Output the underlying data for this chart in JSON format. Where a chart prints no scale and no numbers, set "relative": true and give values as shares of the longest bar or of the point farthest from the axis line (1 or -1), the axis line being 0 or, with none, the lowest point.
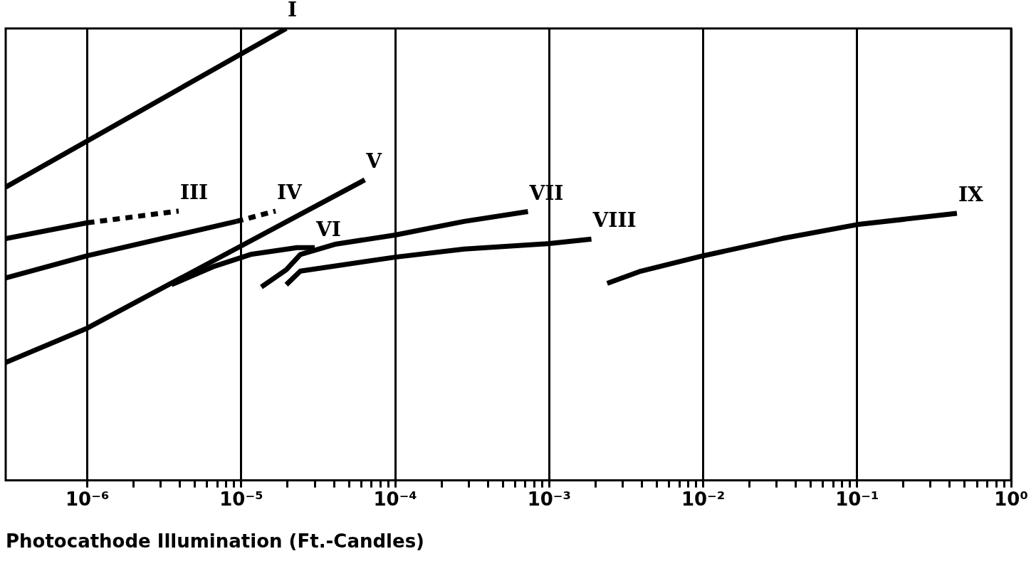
{
  "chart_data": {
    "type": "line",
    "xlabel": "Photocathode Illumination (Ft.-Candles)",
    "relative": true,
    "log": "x",
    "grid": "x",
    "legend": false,
    "marker": "none",
    "line_style": "solid",
    "xlim": [
      2.95e-07,
      1
    ],
    "xticks": [
      {
        "value": 1e-06,
        "label": "10⁻⁶"
      },
      {
        "value": 2e-06,
        "label": null
      },
      {
        "value": 3e-06,
        "label": null
      },
      {
        "value": 4e-06,
        "label": null
      },
      {
        "value": 5e-06,
        "label": null
      },
      {
        "value": 6e-06,
        "label": null
      },
      {
        "value": 7e-06,
        "label": null
      },
      {
        "value": 8e-06,
        "label": null
      },
      {
        "value": 9e-06,
        "label": null
      },
      {
        "value": 1e-05,
        "label": "10⁻⁵"
      },
      {
        "value": 2e-05,
        "label": null
      },
      {
        "value": 3e-05,
        "label": null
      },
      {
        "value": 4e-05,
        "label": null
      },
      {
        "value": 5e-05,
        "label": null
      },
      {
        "value": 6e-05,
        "label": null
      },
      {
        "value": 7e-05,
        "label": null
      },
      {
        "value": 8e-05,
        "label": null
      },
      {
        "value": 9e-05,
        "label": null
      },
      {
        "value": 0.0001,
        "label": "10⁻⁴"
      },
      {
        "value": 0.0002,
        "label": null
      },
      {
        "value": 0.0003,
        "label": null
      },
      {
        "value": 0.0004,
        "label": null
      },
      {
        "value": 0.0005,
        "label": null
      },
      {
        "value": 0.0006,
        "label": null
      },
      {
        "value": 0.0007,
        "label": null
      },
      {
        "value": 0.0008,
        "label": null
      },
      {
        "value": 0.0009,
        "label": null
      },
      {
        "value": 0.001,
        "label": "10⁻³"
      },
      {
        "value": 0.002,
        "label": null
      },
      {
        "value": 0.003,
        "label": null
      },
      {
        "value": 0.004,
        "label": null
      },
      {
        "value": 0.005,
        "label": null
      },
      {
        "value": 0.006,
        "label": null
      },
      {
        "value": 0.007,
        "label": null
      },
      {
        "value": 0.008,
        "label": null
      },
      {
        "value": 0.009,
        "label": null
      },
      {
        "value": 0.01,
        "label": "10⁻²"
      },
      {
        "value": 0.02,
        "label": null
      },
      {
        "value": 0.03,
        "label": null
      },
      {
        "value": 0.04,
        "label": null
      },
      {
        "value": 0.05,
        "label": null
      },
      {
        "value": 0.06,
        "label": null
      },
      {
        "value": 0.07,
        "label": null
      },
      {
        "value": 0.08,
        "label": null
      },
      {
        "value": 0.09,
        "label": null
      },
      {
        "value": 0.1,
        "label": "10⁻¹"
      },
      {
        "value": 0.2,
        "label": null
      },
      {
        "value": 0.3,
        "label": null
      },
      {
        "value": 0.4,
        "label": null
      },
      {
        "value": 0.5,
        "label": null
      },
      {
        "value": 0.6,
        "label": null
      },
      {
        "value": 0.7,
        "label": null
      },
      {
        "value": 0.8,
        "label": null
      },
      {
        "value": 0.9,
        "label": null
      },
      {
        "value": 1,
        "label": "10⁰"
      }
    ],
    "series": [
      {
        "name": "I",
        "color": "#000000",
        "x": [
          2.95e-07,
          1.96e-05
        ],
        "values": [
          0.649,
          1
        ]
      },
      {
        "color": "#000000",
        "x": [
          2.95e-07,
          1e-06
        ],
        "values": [
          0.535,
          0.57
        ]
      },
      {
        "name": "III",
        "color": "#000000",
        "line_style": "dashed",
        "x": [
          1e-06,
          3.92e-06
        ],
        "values": [
          0.57,
          0.596
        ]
      },
      {
        "color": "#000000",
        "x": [
          2.95e-07,
          1e-06,
          9.27e-06
        ],
        "values": [
          0.448,
          0.497,
          0.573
        ]
      },
      {
        "name": "IV",
        "color": "#000000",
        "line_style": "dashed",
        "x": [
          9.27e-06,
          1.67e-05
        ],
        "values": [
          0.573,
          0.596
        ]
      },
      {
        "name": "V",
        "color": "#000000",
        "x": [
          2.95e-07,
          1e-06,
          6.34e-05
        ],
        "values": [
          0.261,
          0.337,
          0.665
        ]
      },
      {
        "name": "VI",
        "color": "#000000",
        "x": [
          3.52e-06,
          6.71e-06,
          1.15e-05,
          2.3e-05,
          3e-05
        ],
        "values": [
          0.433,
          0.474,
          0.5,
          0.515,
          0.515
        ]
      },
      {
        "name": "VII",
        "color": "#000000",
        "x": [
          1.35e-05,
          1.96e-05,
          2.42e-05,
          4.13e-05,
          0.0001,
          0.00028,
          0.000728
        ],
        "values": [
          0.428,
          0.466,
          0.5,
          0.523,
          0.543,
          0.573,
          0.595
        ]
      },
      {
        "name": "VIII",
        "color": "#000000",
        "x": [
          1.96e-05,
          2.42e-05,
          0.0001,
          0.00028,
          0.001,
          0.00188
        ],
        "values": [
          0.433,
          0.463,
          0.494,
          0.512,
          0.524,
          0.534
        ]
      },
      {
        "name": "IX",
        "color": "#000000",
        "x": [
          0.00238,
          0.00394,
          0.01,
          0.0324,
          0.1,
          0.445
        ],
        "values": [
          0.436,
          0.463,
          0.497,
          0.535,
          0.566,
          0.591
        ]
      }
    ]
  }
}
